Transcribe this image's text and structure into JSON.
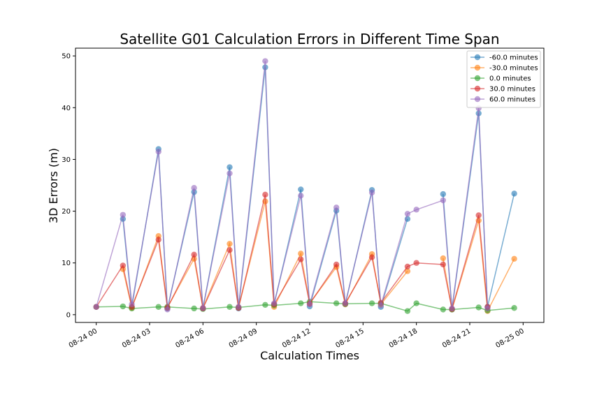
{
  "chart_data": {
    "type": "line",
    "title": "Satellite G01 Calculation Errors in Different Time Span",
    "xlabel": "Calculation Times",
    "ylabel": "3D Errors (m)",
    "xlim": [
      "2018-08-24 00:00",
      "2018-08-25 00:00"
    ],
    "ylim": [
      -1.5,
      51.5
    ],
    "x_ticks": [
      "08-24 00",
      "08-24 03",
      "08-24 06",
      "08-24 09",
      "08-24 12",
      "08-24 15",
      "08-24 18",
      "08-24 21",
      "08-25 00"
    ],
    "y_ticks": [
      0,
      10,
      20,
      30,
      40,
      50
    ],
    "grid": false,
    "legend_position": "top-right",
    "x": [
      "08-24 00:00",
      "08-24 01:30",
      "08-24 02:00",
      "08-24 03:30",
      "08-24 04:00",
      "08-24 05:30",
      "08-24 06:00",
      "08-24 07:30",
      "08-24 08:00",
      "08-24 09:30",
      "08-24 10:00",
      "08-24 11:30",
      "08-24 12:00",
      "08-24 13:30",
      "08-24 14:00",
      "08-24 15:30",
      "08-24 16:00",
      "08-24 17:30",
      "08-24 18:00",
      "08-24 19:30",
      "08-24 20:00",
      "08-24 21:30",
      "08-24 22:00",
      "08-24 23:30"
    ],
    "series": [
      {
        "name": "-60.0 minutes",
        "color": "#1f77b4",
        "values": [
          null,
          18.5,
          1.5,
          32.0,
          1.2,
          23.7,
          1.2,
          28.5,
          1.2,
          47.8,
          2.0,
          24.2,
          1.6,
          20.1,
          2.0,
          24.1,
          1.5,
          18.5,
          null,
          23.3,
          1.0,
          38.9,
          1.5,
          23.4
        ]
      },
      {
        "name": "-30.0 minutes",
        "color": "#ff7f0e",
        "values": [
          null,
          8.8,
          1.3,
          15.2,
          1.4,
          10.8,
          1.3,
          13.7,
          1.4,
          21.9,
          1.5,
          11.8,
          2.2,
          9.2,
          2.0,
          11.7,
          2.0,
          8.4,
          null,
          10.9,
          1.0,
          18.2,
          0.7,
          10.8
        ]
      },
      {
        "name": "0.0 minutes",
        "color": "#2ca02c",
        "values": [
          1.5,
          1.6,
          1.2,
          1.5,
          1.5,
          1.2,
          1.1,
          1.5,
          1.4,
          1.9,
          1.8,
          2.2,
          2.5,
          2.2,
          2.1,
          2.2,
          2.2,
          0.7,
          2.2,
          1.0,
          1.0,
          1.4,
          0.8,
          1.3
        ]
      },
      {
        "name": "30.0 minutes",
        "color": "#d62728",
        "values": [
          1.5,
          9.5,
          1.5,
          14.5,
          1.3,
          11.6,
          1.2,
          12.5,
          1.3,
          23.2,
          2.0,
          10.7,
          2.1,
          9.7,
          2.2,
          11.1,
          2.3,
          9.3,
          10.0,
          9.7,
          1.1,
          19.2,
          1.5,
          null
        ]
      },
      {
        "name": "60.0 minutes",
        "color": "#9467bd",
        "values": [
          1.5,
          19.3,
          2.0,
          31.5,
          1.0,
          24.5,
          1.3,
          27.3,
          1.5,
          49.0,
          2.2,
          23.0,
          2.0,
          20.7,
          2.2,
          23.6,
          1.8,
          19.5,
          20.3,
          22.1,
          1.2,
          39.9,
          1.2,
          null
        ]
      }
    ]
  }
}
